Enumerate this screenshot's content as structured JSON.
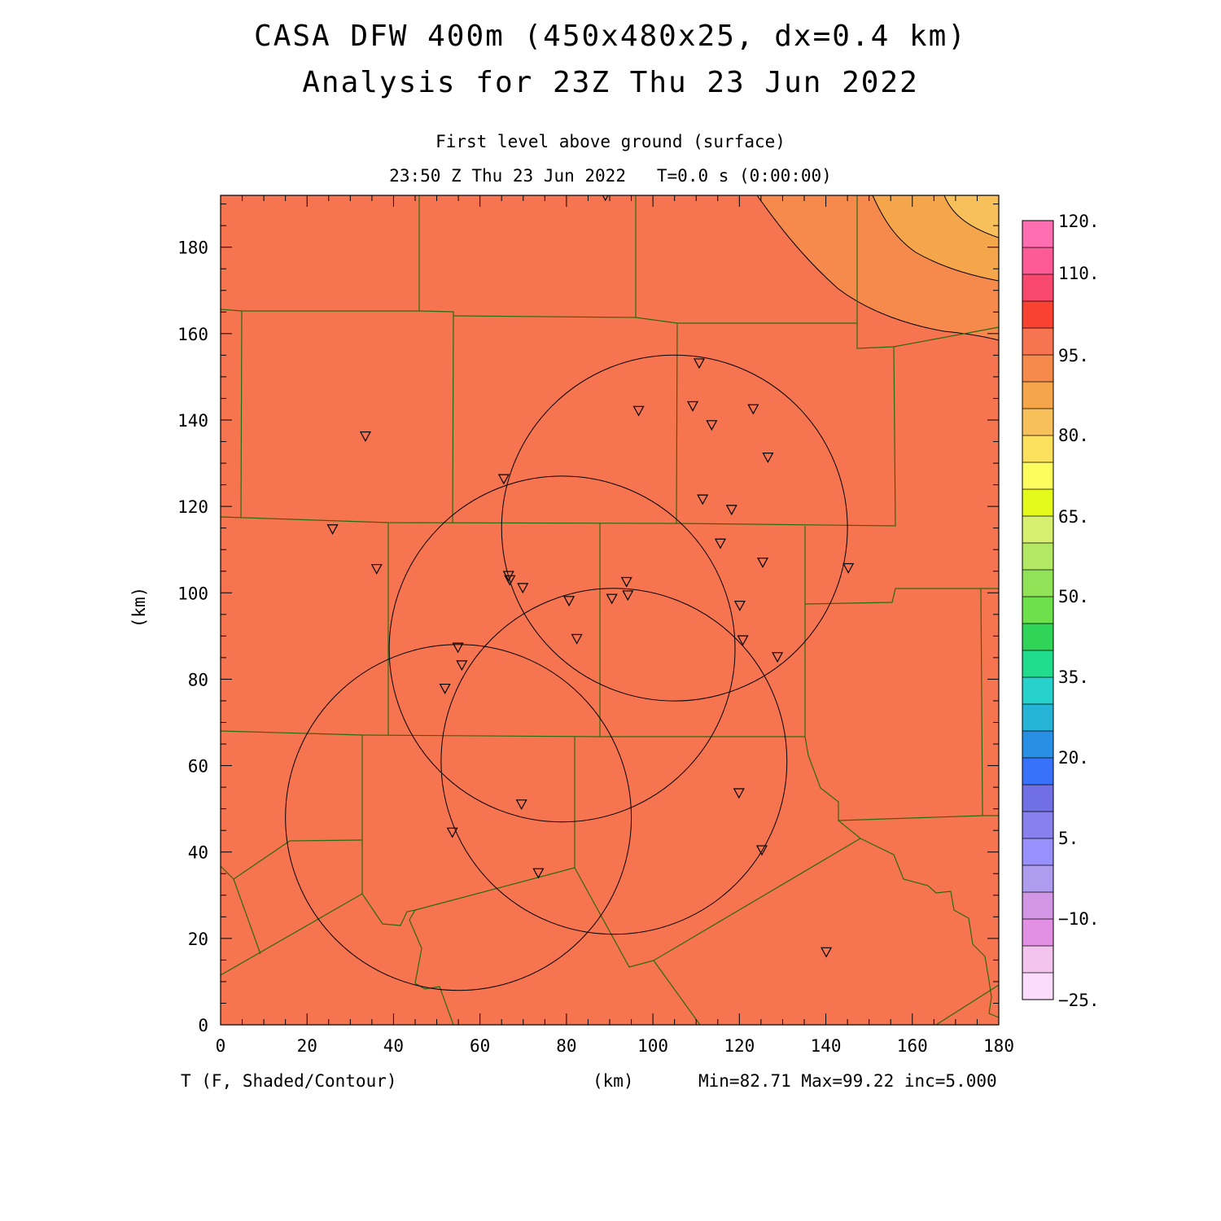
{
  "title": {
    "line1": "CASA DFW 400m (450x480x25, dx=0.4 km)",
    "line2": "Analysis for 23Z Thu 23 Jun 2022"
  },
  "subtitle": {
    "level": "First level above ground (surface)",
    "time": "23:50 Z Thu 23 Jun 2022   T=0.0 s (0:00:00)"
  },
  "footer": {
    "variable": "T (F, Shaded/Contour)",
    "x_unit": "(km)",
    "stats": "Min=82.71 Max=99.22 inc=5.000"
  },
  "axes": {
    "ylabel": "(km)",
    "x_ticks": [
      "0",
      "20",
      "40",
      "60",
      "80",
      "100",
      "120",
      "140",
      "160",
      "180"
    ],
    "y_ticks": [
      "0",
      "20",
      "40",
      "60",
      "80",
      "100",
      "120",
      "140",
      "160",
      "180"
    ],
    "xlim": [
      0,
      180
    ],
    "ylim": [
      0,
      192
    ]
  },
  "colorbar": {
    "labels": [
      "120.",
      "110.",
      "95.",
      "80.",
      "65.",
      "50.",
      "35.",
      "20.",
      "5.",
      "−10.",
      "−25."
    ],
    "colors": [
      "#fe6eb0",
      "#fe5a96",
      "#f8486e",
      "#fa4232",
      "#f77450",
      "#f68a4c",
      "#f5a64a",
      "#f8c05a",
      "#fce05e",
      "#fcfc5e",
      "#e4fa1a",
      "#d8f070",
      "#b2e864",
      "#90e256",
      "#6ee04c",
      "#30d456",
      "#20dc8c",
      "#28d2cc",
      "#26b4d6",
      "#2890e4",
      "#3872fa",
      "#7070e4",
      "#8880ec",
      "#9890fc",
      "#ae9cee",
      "#d296e4",
      "#e290e4",
      "#f2c4ee",
      "#fcdcfc"
    ]
  },
  "map": {
    "background_color": "#f77450",
    "contour_levels_F": [
      95,
      90
    ],
    "fill_colors": {
      "t_90_95": "#f68a4c",
      "t_85_90": "#f5a64a",
      "t_80_85": "#f8c05a"
    },
    "boundary_color": "#2a6a10",
    "radar_circles_km": [
      {
        "cx": 105,
        "cy": 115,
        "r": 40
      },
      {
        "cx": 79,
        "cy": 87,
        "r": 40
      },
      {
        "cx": 91,
        "cy": 61,
        "r": 40
      },
      {
        "cx": 55,
        "cy": 48,
        "r": 40
      }
    ],
    "stations_km": [
      [
        89,
        192
      ],
      [
        110.7,
        153.2
      ],
      [
        96.7,
        142.2
      ],
      [
        109.2,
        143.3
      ],
      [
        123.2,
        142.6
      ],
      [
        113.6,
        138.9
      ],
      [
        33.5,
        136.3
      ],
      [
        126.6,
        131.4
      ],
      [
        65.5,
        126.4
      ],
      [
        111.5,
        121.7
      ],
      [
        118.2,
        119.3
      ],
      [
        115.6,
        111.5
      ],
      [
        125.4,
        107.1
      ],
      [
        25.9,
        114.8
      ],
      [
        36.1,
        105.6
      ],
      [
        145.2,
        105.8
      ],
      [
        66.6,
        104.0
      ],
      [
        66.9,
        103.0
      ],
      [
        69.9,
        101.2
      ],
      [
        93.9,
        102.6
      ],
      [
        94.2,
        99.5
      ],
      [
        90.5,
        98.7
      ],
      [
        80.6,
        98.2
      ],
      [
        120.1,
        97.1
      ],
      [
        82.4,
        89.4
      ],
      [
        120.8,
        89.1
      ],
      [
        54.9,
        87.4
      ],
      [
        55.8,
        83.3
      ],
      [
        128.8,
        85.2
      ],
      [
        51.9,
        77.9
      ],
      [
        119.9,
        53.7
      ],
      [
        69.6,
        51.1
      ],
      [
        53.6,
        44.6
      ],
      [
        125.2,
        40.5
      ],
      [
        73.5,
        35.2
      ],
      [
        140.1,
        16.9
      ]
    ]
  }
}
